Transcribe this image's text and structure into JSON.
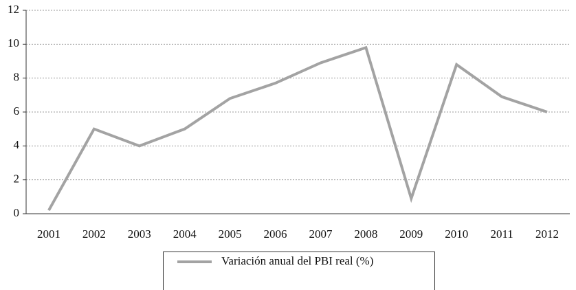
{
  "chart_data": {
    "type": "line",
    "categories": [
      "2001",
      "2002",
      "2003",
      "2004",
      "2005",
      "2006",
      "2007",
      "2008",
      "2009",
      "2010",
      "2011",
      "2012"
    ],
    "series": [
      {
        "name": "Variación anual del PBI real (%)",
        "color": "#a3a3a3",
        "values": [
          0.2,
          5.0,
          4.0,
          5.0,
          6.8,
          7.7,
          8.9,
          9.8,
          0.9,
          8.8,
          6.9,
          6.0
        ]
      }
    ],
    "ylim": [
      0,
      12
    ],
    "yticks": [
      0,
      2,
      4,
      6,
      8,
      10,
      12
    ],
    "grid": true,
    "legend": "bottom"
  }
}
